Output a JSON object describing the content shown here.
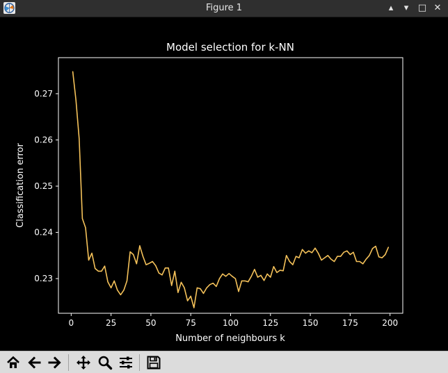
{
  "window": {
    "title": "Figure 1",
    "minimize_glyph": "▴",
    "restore_glyph": "▾",
    "maximize_glyph": "□",
    "close_glyph": "✕"
  },
  "toolbar": {
    "buttons": [
      {
        "icon": "home-icon"
      },
      {
        "icon": "back-arrow-icon"
      },
      {
        "icon": "forward-arrow-icon"
      },
      {
        "icon": "pan-icon"
      },
      {
        "icon": "zoom-icon"
      },
      {
        "icon": "configure-subplots-icon"
      },
      {
        "icon": "save-icon"
      }
    ]
  },
  "colors": {
    "line": "#f5c25a",
    "axes": "#ffffff",
    "background": "#000000"
  },
  "chart_data": {
    "type": "line",
    "title": "Model selection for k-NN",
    "xlabel": "Number of neighbours k",
    "ylabel": "Classification error",
    "xlim": [
      -8,
      208
    ],
    "ylim": [
      0.2225,
      0.2778
    ],
    "xticks": [
      0,
      25,
      50,
      75,
      100,
      125,
      150,
      175,
      200
    ],
    "yticks": [
      0.23,
      0.24,
      0.25,
      0.26,
      0.27
    ],
    "ytick_labels": [
      "0.23",
      "0.24",
      "0.25",
      "0.26",
      "0.27"
    ],
    "grid": false,
    "series": [
      {
        "x": [
          1,
          3,
          5,
          7,
          9,
          11,
          13,
          15,
          17,
          19,
          21,
          23,
          25,
          27,
          29,
          31,
          33,
          35,
          37,
          39,
          41,
          43,
          45,
          47,
          49,
          51,
          53,
          55,
          57,
          59,
          61,
          63,
          65,
          67,
          69,
          71,
          73,
          75,
          77,
          79,
          81,
          83,
          85,
          87,
          89,
          91,
          93,
          95,
          97,
          99,
          101,
          103,
          105,
          107,
          109,
          111,
          113,
          115,
          117,
          119,
          121,
          123,
          125,
          127,
          129,
          131,
          133,
          135,
          137,
          139,
          141,
          143,
          145,
          147,
          149,
          151,
          153,
          155,
          157,
          159,
          161,
          163,
          165,
          167,
          169,
          171,
          173,
          175,
          177,
          179,
          181,
          183,
          185,
          187,
          189,
          191,
          193,
          195,
          197,
          199
        ],
        "y": [
          0.2748,
          0.2686,
          0.2603,
          0.243,
          0.241,
          0.234,
          0.2355,
          0.2322,
          0.2316,
          0.2316,
          0.2327,
          0.2293,
          0.228,
          0.2295,
          0.2275,
          0.2265,
          0.2275,
          0.2295,
          0.2358,
          0.2352,
          0.2332,
          0.2371,
          0.2348,
          0.233,
          0.2333,
          0.2337,
          0.2328,
          0.2312,
          0.2308,
          0.2323,
          0.2323,
          0.2285,
          0.2316,
          0.227,
          0.2292,
          0.228,
          0.2252,
          0.2262,
          0.2237,
          0.228,
          0.2278,
          0.2268,
          0.228,
          0.2287,
          0.229,
          0.2283,
          0.23,
          0.231,
          0.2305,
          0.2311,
          0.2305,
          0.23,
          0.2272,
          0.2295,
          0.2295,
          0.2293,
          0.2305,
          0.232,
          0.2303,
          0.2307,
          0.2296,
          0.231,
          0.2303,
          0.2326,
          0.2313,
          0.2318,
          0.2317,
          0.235,
          0.2337,
          0.233,
          0.2348,
          0.2345,
          0.2363,
          0.2355,
          0.236,
          0.2356,
          0.2366,
          0.2355,
          0.234,
          0.2345,
          0.235,
          0.2342,
          0.2337,
          0.2348,
          0.2348,
          0.2357,
          0.236,
          0.2352,
          0.2357,
          0.2337,
          0.2337,
          0.2332,
          0.2342,
          0.235,
          0.2365,
          0.237,
          0.2347,
          0.2345,
          0.2352,
          0.2368
        ]
      }
    ]
  }
}
